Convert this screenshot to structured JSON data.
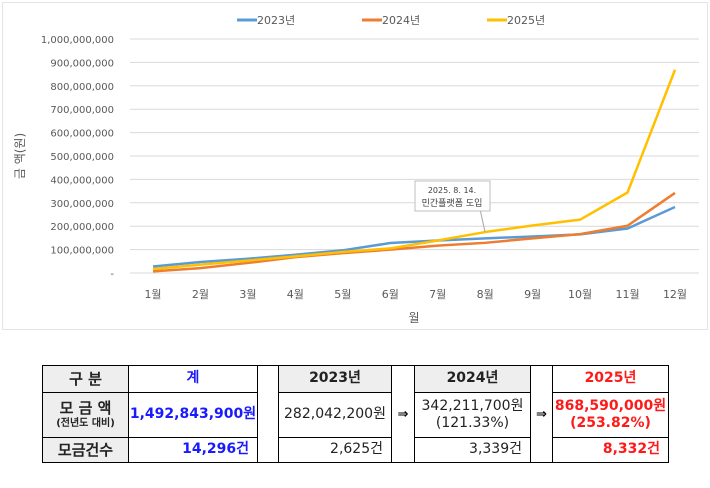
{
  "chart_data": {
    "type": "line",
    "title": "",
    "xlabel": "월",
    "ylabel": "금 액(원)",
    "ylim": [
      0,
      1000000000
    ],
    "grid": true,
    "legend_position": "top",
    "categories": [
      "1월",
      "2월",
      "3월",
      "4월",
      "5월",
      "6월",
      "7월",
      "8월",
      "9월",
      "10월",
      "11월",
      "12월"
    ],
    "y_ticks": [
      "-",
      "100,000,000",
      "200,000,000",
      "300,000,000",
      "400,000,000",
      "500,000,000",
      "600,000,000",
      "700,000,000",
      "800,000,000",
      "900,000,000",
      "1,000,000,000"
    ],
    "series": [
      {
        "name": "2023년",
        "color": "#5b9bd5",
        "values": [
          28000000,
          47000000,
          61000000,
          78000000,
          97000000,
          128000000,
          139000000,
          148000000,
          156000000,
          165000000,
          190000000,
          282042200
        ]
      },
      {
        "name": "2024년",
        "color": "#ed7d31",
        "values": [
          7000000,
          21000000,
          43000000,
          68000000,
          85000000,
          100000000,
          117000000,
          129000000,
          148000000,
          166000000,
          202000000,
          342211700
        ]
      },
      {
        "name": "2025년",
        "color": "#ffc000",
        "values": [
          17000000,
          36000000,
          53000000,
          71000000,
          90000000,
          105000000,
          139000000,
          175000000,
          203000000,
          228000000,
          344000000,
          868590000
        ]
      }
    ],
    "annotation": {
      "line1": "2025. 8. 14.",
      "line2": "민간플랫폼 도입",
      "month": "8월",
      "series": "2025년"
    }
  },
  "table": {
    "header": {
      "label": "구  분",
      "total": "계",
      "y2023": "2023년",
      "y2024": "2024년",
      "y2025": "2025년"
    },
    "amount_row": {
      "label": "모 금 액",
      "sublabel": "(전년도 대비)",
      "total": "1,492,843,900원",
      "y2023": "282,042,200원",
      "y2024": "342,211,700원",
      "y2024_ratio": "(121.33%)",
      "y2025": "868,590,000원",
      "y2025_ratio": "(253.82%)"
    },
    "count_row": {
      "label": "모금건수",
      "total": "14,296건",
      "y2023": "2,625건",
      "y2024": "3,339건",
      "y2025": "8,332건"
    },
    "arrow": "⇒"
  }
}
